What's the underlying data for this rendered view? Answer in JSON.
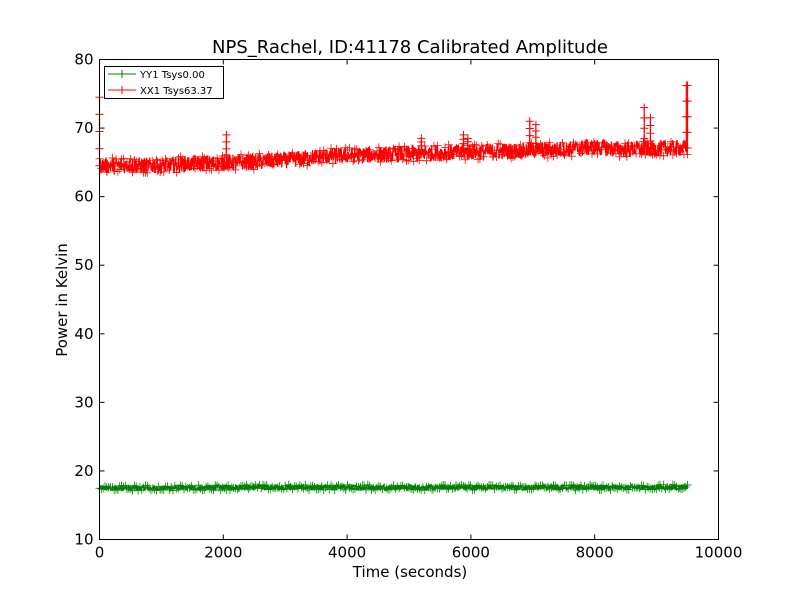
{
  "chart_data": {
    "type": "line",
    "title": "NPS_Rachel, ID:41178 Calibrated Amplitude",
    "xlabel": "Time (seconds)",
    "ylabel": "Power in Kelvin",
    "xlim": [
      0,
      10000
    ],
    "ylim": [
      10,
      80
    ],
    "xticks": [
      "0",
      "2000",
      "4000",
      "6000",
      "8000",
      "10000"
    ],
    "yticks": [
      "10",
      "20",
      "30",
      "40",
      "50",
      "60",
      "70",
      "80"
    ],
    "grid": false,
    "legend_position": "top-left",
    "series": [
      {
        "name": "YY1 Tsys0.00",
        "color": "#008000",
        "marker": "+",
        "noise": 0.4,
        "x": [
          0,
          1000,
          2000,
          3000,
          4000,
          5000,
          6000,
          7000,
          8000,
          9000,
          9500
        ],
        "y": [
          17.5,
          17.5,
          17.6,
          17.6,
          17.6,
          17.6,
          17.6,
          17.6,
          17.6,
          17.6,
          17.6
        ],
        "spikes": []
      },
      {
        "name": "XX1 Tsys63.37",
        "color": "#ff0000",
        "marker": "+",
        "noise": 1.2,
        "x": [
          0,
          500,
          1000,
          1500,
          2000,
          2500,
          3000,
          3500,
          4000,
          4500,
          5000,
          5500,
          6000,
          6500,
          7000,
          7500,
          8000,
          8500,
          9000,
          9500
        ],
        "y": [
          64.5,
          64.6,
          64.5,
          64.8,
          64.9,
          65.1,
          65.3,
          65.8,
          66.0,
          66.1,
          66.3,
          66.4,
          66.5,
          66.6,
          66.8,
          66.9,
          67.2,
          66.9,
          67.0,
          67.1
        ],
        "spikes": [
          {
            "x": 0,
            "y": 74.5
          },
          {
            "x": 2050,
            "y": 69.0
          },
          {
            "x": 5200,
            "y": 68.5
          },
          {
            "x": 5880,
            "y": 69.0
          },
          {
            "x": 5950,
            "y": 68.5
          },
          {
            "x": 6950,
            "y": 71.0
          },
          {
            "x": 7050,
            "y": 70.5
          },
          {
            "x": 8800,
            "y": 73.0
          },
          {
            "x": 8900,
            "y": 71.5
          },
          {
            "x": 9480,
            "y": 76.2
          },
          {
            "x": 9500,
            "y": 76.2
          }
        ]
      }
    ]
  }
}
